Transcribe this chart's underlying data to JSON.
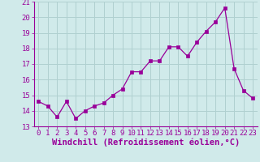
{
  "x": [
    0,
    1,
    2,
    3,
    4,
    5,
    6,
    7,
    8,
    9,
    10,
    11,
    12,
    13,
    14,
    15,
    16,
    17,
    18,
    19,
    20,
    21,
    22,
    23
  ],
  "y": [
    14.6,
    14.3,
    13.6,
    14.6,
    13.5,
    14.0,
    14.3,
    14.5,
    15.0,
    15.4,
    16.5,
    16.5,
    17.2,
    17.2,
    18.1,
    18.1,
    17.5,
    18.4,
    19.1,
    19.7,
    20.6,
    16.7,
    15.3,
    14.8
  ],
  "ylim": [
    13,
    21
  ],
  "yticks": [
    13,
    14,
    15,
    16,
    17,
    18,
    19,
    20,
    21
  ],
  "xlabel": "Windchill (Refroidissement éolien,°C)",
  "line_color": "#990099",
  "marker": "s",
  "marker_size": 2.5,
  "bg_color": "#d0eaea",
  "grid_color": "#b0d0d0",
  "tick_label_fontsize": 6.5,
  "xlabel_fontsize": 7.5
}
